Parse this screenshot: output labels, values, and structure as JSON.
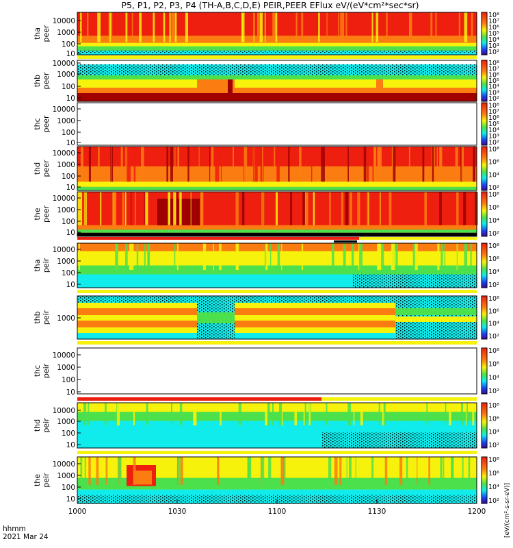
{
  "title": "P5, P1, P2, P3, P4 (TH-A,B,C,D,E) PEIR,PEER EFlux eV/(eV*cm²*sec*sr)",
  "colorbar_label": "[eV/(cm²-s-sr-eV)]",
  "time_axis": {
    "label_line1": "hhmm",
    "label_line2": "2021 Mar 24",
    "ticks": [
      "1000",
      "1030",
      "1100",
      "1130",
      "1200"
    ]
  },
  "colors": {
    "dark_red": "#a00000",
    "red": "#ee1f0e",
    "orange": "#fb7d11",
    "yellow": "#f7f20c",
    "green": "#4ce04c",
    "cyan": "#10ecec",
    "blue": "#1a40f0",
    "purple": "#3a0a8a",
    "black": "#000000"
  },
  "chart_data": {
    "type": "heatmap",
    "x_range": [
      "1000",
      "1200"
    ],
    "panels": [
      {
        "id": "tha-peer",
        "label1": "tha",
        "label2": "peer",
        "ticks": [
          "10",
          "100",
          "1000",
          "10000"
        ],
        "cbar": [
          "10²",
          "10³",
          "10⁴",
          "10⁵",
          "10⁶",
          "10⁷",
          "10⁸"
        ]
      },
      {
        "id": "thb-peer",
        "label1": "thb",
        "label2": "peer",
        "ticks": [
          "10",
          "100",
          "1000",
          "10000"
        ],
        "cbar": [
          "10²",
          "10³",
          "10⁴",
          "10⁵",
          "10⁶",
          "10⁷",
          "10⁸"
        ]
      },
      {
        "id": "thc-peer",
        "label1": "thc",
        "label2": "peer",
        "ticks": [
          "10",
          "100",
          "1000",
          "10000"
        ],
        "cbar": [
          "10²",
          "10³",
          "10⁴",
          "10⁵",
          "10⁶",
          "10⁷",
          "10⁸"
        ]
      },
      {
        "id": "thd-peer",
        "label1": "thd",
        "label2": "peer",
        "ticks": [
          "10",
          "100",
          "1000",
          "10000"
        ],
        "cbar": [
          "10²",
          "10⁴",
          "10⁶",
          "10⁸"
        ]
      },
      {
        "id": "the-peer",
        "label1": "the",
        "label2": "peer",
        "ticks": [
          "10",
          "100",
          "1000",
          "10000"
        ],
        "cbar": [
          "10²",
          "10⁴",
          "10⁶",
          "10⁸"
        ]
      },
      {
        "id": "tha-peir",
        "label1": "tha",
        "label2": "peir",
        "ticks": [
          "10",
          "100",
          "1000",
          "10000"
        ],
        "cbar": [
          "10²",
          "10⁴",
          "10⁶",
          "10⁸"
        ]
      },
      {
        "id": "thb-peir",
        "label1": "thb",
        "label2": "peir",
        "ticks": [
          "1000"
        ],
        "cbar": [
          "10²",
          "10⁴",
          "10⁶",
          "10⁸"
        ]
      },
      {
        "id": "thc-peir",
        "label1": "thc",
        "label2": "peir",
        "ticks": [
          "10",
          "100",
          "1000",
          "10000"
        ],
        "cbar": [
          "10²",
          "10⁴",
          "10⁶",
          "10⁸"
        ]
      },
      {
        "id": "thd-peir",
        "label1": "thd",
        "label2": "peir",
        "ticks": [
          "10",
          "100",
          "1000",
          "10000"
        ],
        "cbar": [
          "10²",
          "10⁴",
          "10⁶",
          "10⁸"
        ]
      },
      {
        "id": "the-peir",
        "label1": "the",
        "label2": "peir",
        "ticks": [
          "10",
          "100",
          "1000",
          "10000"
        ],
        "cbar": [
          "10²",
          "10⁴",
          "10⁶",
          "10⁸"
        ]
      }
    ]
  }
}
